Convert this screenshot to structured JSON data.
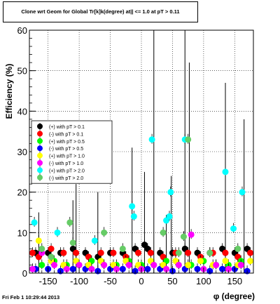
{
  "chart_data": {
    "type": "scatter",
    "title": "Clone wrt Geom for Global Tr[k]k(degree) at|| <= 1.0 at pT > 0.11",
    "xlabel": "φ (degree)",
    "ylabel": "Efficiency (%)",
    "xlim": [
      -180,
      180
    ],
    "ylim": [
      0,
      60
    ],
    "x_ticks": [
      "-150",
      "-100",
      "-50",
      "0",
      "50",
      "100",
      "150"
    ],
    "y_ticks": [
      "0",
      "10",
      "20",
      "30",
      "40",
      "50",
      "60"
    ],
    "grid": true,
    "legend_position": "middle-left",
    "series": [
      {
        "name": "(+) with pT > 0.1",
        "color": "#000000",
        "points": [
          [
            -170,
            5
          ],
          [
            -150,
            5
          ],
          [
            -130,
            5
          ],
          [
            -110,
            6
          ],
          [
            -90,
            5
          ],
          [
            -70,
            4
          ],
          [
            -50,
            5
          ],
          [
            -30,
            5
          ],
          [
            -10,
            6
          ],
          [
            5,
            7
          ],
          [
            10,
            6
          ],
          [
            30,
            5
          ],
          [
            50,
            5
          ],
          [
            70,
            6
          ],
          [
            90,
            5
          ],
          [
            110,
            5
          ],
          [
            130,
            6
          ],
          [
            150,
            5
          ],
          [
            170,
            6
          ]
        ]
      },
      {
        "name": "(-) with pT > 0.1",
        "color": "#ff0000",
        "points": [
          [
            -175,
            5
          ],
          [
            -165,
            4
          ],
          [
            -145,
            6
          ],
          [
            -125,
            5
          ],
          [
            -105,
            5
          ],
          [
            -85,
            4
          ],
          [
            -65,
            5
          ],
          [
            -45,
            5
          ],
          [
            -25,
            4
          ],
          [
            -5,
            5
          ],
          [
            15,
            5
          ],
          [
            35,
            4
          ],
          [
            55,
            5
          ],
          [
            75,
            5
          ],
          [
            95,
            4
          ],
          [
            115,
            5
          ],
          [
            135,
            5
          ],
          [
            155,
            4
          ],
          [
            175,
            5
          ]
        ]
      },
      {
        "name": "(+) with pT > 0.5",
        "color": "#00ff00",
        "points": [
          [
            -160,
            2
          ],
          [
            -140,
            3
          ],
          [
            -120,
            2
          ],
          [
            -100,
            2
          ],
          [
            -80,
            3
          ],
          [
            -60,
            2
          ],
          [
            -40,
            2
          ],
          [
            -20,
            3
          ],
          [
            0,
            2
          ],
          [
            20,
            2
          ],
          [
            40,
            3
          ],
          [
            60,
            2
          ],
          [
            80,
            2
          ],
          [
            100,
            3
          ],
          [
            120,
            2
          ],
          [
            140,
            2
          ],
          [
            160,
            3
          ]
        ]
      },
      {
        "name": "(-) with pT > 0.5",
        "color": "#0000ff",
        "points": [
          [
            -170,
            1
          ],
          [
            -150,
            1
          ],
          [
            -130,
            0.5
          ],
          [
            -110,
            1
          ],
          [
            -90,
            1
          ],
          [
            -70,
            0.5
          ],
          [
            -50,
            1
          ],
          [
            -30,
            1
          ],
          [
            -10,
            0.5
          ],
          [
            10,
            1
          ],
          [
            30,
            1
          ],
          [
            50,
            0.5
          ],
          [
            70,
            1
          ],
          [
            90,
            1
          ],
          [
            110,
            0.5
          ],
          [
            130,
            1
          ],
          [
            150,
            1
          ],
          [
            170,
            0.5
          ]
        ]
      },
      {
        "name": "(+) with pT > 1.0",
        "color": "#ffff00",
        "points": [
          [
            -165,
            8
          ],
          [
            -145,
            3
          ],
          [
            -125,
            2
          ],
          [
            -105,
            3
          ],
          [
            -85,
            2
          ],
          [
            -65,
            3
          ],
          [
            -45,
            2
          ],
          [
            -25,
            3
          ],
          [
            -5,
            2
          ],
          [
            15,
            3
          ],
          [
            35,
            2
          ],
          [
            55,
            3
          ],
          [
            75,
            2
          ],
          [
            95,
            3
          ],
          [
            115,
            2
          ],
          [
            135,
            3
          ],
          [
            155,
            2
          ],
          [
            175,
            3
          ]
        ]
      },
      {
        "name": "(-) with pT > 1.0",
        "color": "#ff00ff",
        "points": [
          [
            -175,
            1
          ],
          [
            -160,
            5
          ],
          [
            -140,
            2
          ],
          [
            -120,
            1
          ],
          [
            -100,
            2
          ],
          [
            -80,
            1
          ],
          [
            -60,
            2
          ],
          [
            -40,
            1
          ],
          [
            -20,
            2
          ],
          [
            0,
            1
          ],
          [
            20,
            2
          ],
          [
            40,
            1
          ],
          [
            60,
            2
          ],
          [
            80,
            9.5
          ],
          [
            100,
            1
          ],
          [
            120,
            2
          ],
          [
            140,
            1
          ],
          [
            160,
            2
          ]
        ]
      },
      {
        "name": "(+) with pT > 2.0",
        "color": "#00ffff",
        "points": [
          [
            -172,
            12.5
          ],
          [
            -135,
            10
          ],
          [
            -75,
            8
          ],
          [
            -15,
            16.5
          ],
          [
            -12,
            14
          ],
          [
            17,
            33
          ],
          [
            40,
            13
          ],
          [
            45,
            14
          ],
          [
            47,
            20
          ],
          [
            70,
            33
          ],
          [
            135,
            25
          ],
          [
            148,
            11
          ],
          [
            162,
            20
          ]
        ]
      },
      {
        "name": "(-) with pT > 2.0",
        "color": "#66cc66",
        "points": [
          [
            -145,
            4
          ],
          [
            -160,
            6
          ],
          [
            -115,
            12.5
          ],
          [
            -110,
            7.5
          ],
          [
            -60,
            10
          ],
          [
            -30,
            6
          ],
          [
            35,
            10
          ],
          [
            60,
            5
          ],
          [
            75,
            33
          ],
          [
            68,
            9
          ],
          [
            110,
            5
          ],
          [
            155,
            6
          ]
        ]
      }
    ],
    "spikes": [
      [
        -165,
        15
      ],
      [
        -110,
        18
      ],
      [
        -105,
        22
      ],
      [
        -70,
        20
      ],
      [
        -15,
        31
      ],
      [
        5,
        25
      ],
      [
        20,
        60
      ],
      [
        40,
        14
      ],
      [
        48,
        24
      ],
      [
        70,
        60
      ],
      [
        77,
        52
      ],
      [
        135,
        47
      ],
      [
        165,
        38
      ]
    ]
  },
  "footer": "Fri Feb  1 10:29:44 2013"
}
